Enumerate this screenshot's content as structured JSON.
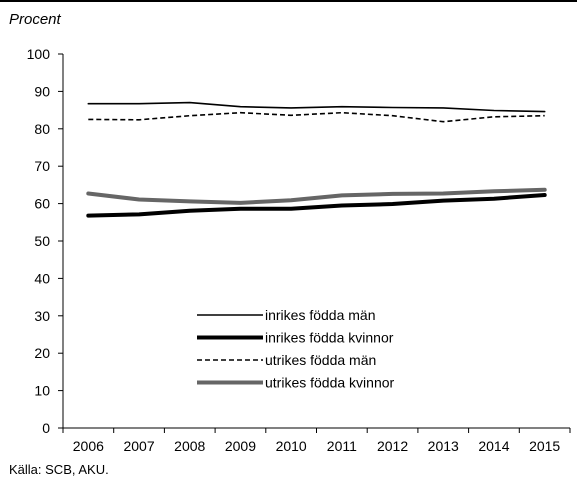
{
  "chart_data": {
    "type": "line",
    "title": "",
    "ylabel": "Procent",
    "xlabel": "",
    "source": "Källa: SCB, AKU.",
    "x": [
      "2006",
      "2007",
      "2008",
      "2009",
      "2010",
      "2011",
      "2012",
      "2013",
      "2014",
      "2015"
    ],
    "ylim": [
      0,
      100
    ],
    "yticks": [
      "0",
      "10",
      "20",
      "30",
      "40",
      "50",
      "60",
      "70",
      "80",
      "90",
      "100"
    ],
    "grid": false,
    "legend_position": "bottom-center",
    "series": [
      {
        "name": "inrikes födda män",
        "style": "solid-thin",
        "color": "#000000",
        "values": [
          86.7,
          86.7,
          87.0,
          85.9,
          85.6,
          85.9,
          85.7,
          85.6,
          84.9,
          84.6
        ]
      },
      {
        "name": "inrikes födda kvinnor",
        "style": "solid-thick",
        "color": "#000000",
        "values": [
          56.8,
          57.1,
          58.1,
          58.6,
          58.6,
          59.5,
          59.9,
          60.8,
          61.3,
          62.3
        ]
      },
      {
        "name": "utrikes födda män",
        "style": "dashed",
        "color": "#000000",
        "values": [
          82.5,
          82.4,
          83.5,
          84.3,
          83.6,
          84.3,
          83.5,
          81.9,
          83.2,
          83.5
        ]
      },
      {
        "name": "utrikes födda kvinnor",
        "style": "solid-thick",
        "color": "#666666",
        "values": [
          62.7,
          61.1,
          60.6,
          60.2,
          60.9,
          62.2,
          62.6,
          62.7,
          63.3,
          63.7
        ]
      }
    ]
  }
}
